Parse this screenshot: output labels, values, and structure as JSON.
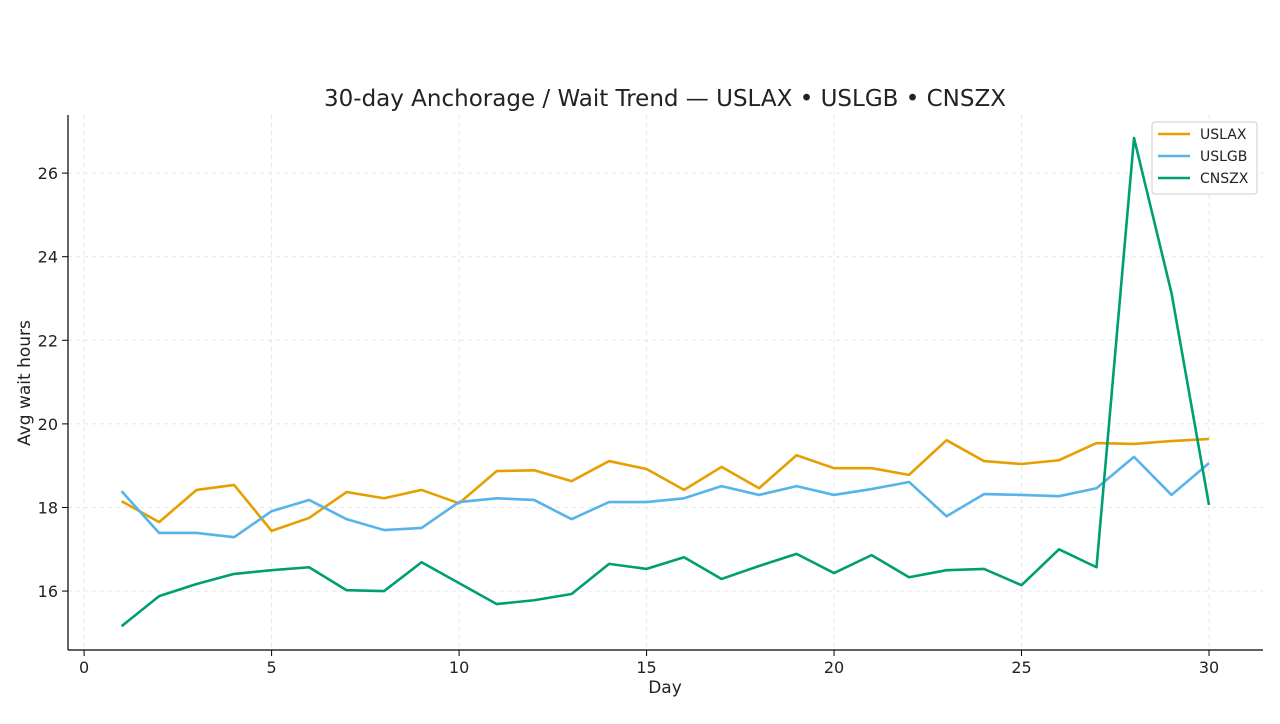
{
  "chart_data": {
    "type": "line",
    "title": "30-day Anchorage / Wait Trend — USLAX • USLGB • CNSZX",
    "xlabel": "Day",
    "ylabel": "Avg wait hours",
    "xlim": [
      -0.43,
      31.44
    ],
    "ylim": [
      14.59,
      27.39
    ],
    "xticks": [
      0,
      5,
      10,
      15,
      20,
      25,
      30
    ],
    "yticks": [
      16,
      18,
      20,
      22,
      24,
      26
    ],
    "grid": true,
    "legend_position": "top-right",
    "x": [
      1,
      2,
      3,
      4,
      5,
      6,
      7,
      8,
      9,
      10,
      11,
      12,
      13,
      14,
      15,
      16,
      17,
      18,
      19,
      20,
      21,
      22,
      23,
      24,
      25,
      26,
      27,
      28,
      29,
      30
    ],
    "series": [
      {
        "name": "USLAX",
        "color": "#E69F00",
        "values": [
          18.15,
          17.65,
          18.42,
          18.54,
          17.44,
          17.75,
          18.37,
          18.22,
          18.42,
          18.1,
          18.87,
          18.89,
          18.63,
          19.11,
          18.92,
          18.42,
          18.97,
          18.46,
          19.25,
          18.94,
          18.94,
          18.78,
          19.61,
          19.11,
          19.04,
          19.13,
          19.54,
          19.52,
          19.59,
          19.64
        ]
      },
      {
        "name": "USLGB",
        "color": "#56B4E9",
        "values": [
          18.39,
          17.39,
          17.39,
          17.29,
          17.91,
          18.18,
          17.72,
          17.46,
          17.51,
          18.13,
          18.22,
          18.18,
          17.72,
          18.13,
          18.13,
          18.22,
          18.51,
          18.3,
          18.51,
          18.3,
          18.44,
          18.61,
          17.79,
          18.32,
          18.3,
          18.27,
          18.46,
          19.21,
          18.3,
          19.06
        ]
      },
      {
        "name": "CNSZX",
        "color": "#009E73",
        "values": [
          15.16,
          15.88,
          16.17,
          16.41,
          16.5,
          16.57,
          16.02,
          16.0,
          16.69,
          16.19,
          15.69,
          15.78,
          15.93,
          16.65,
          16.53,
          16.81,
          16.29,
          16.6,
          16.89,
          16.43,
          16.86,
          16.33,
          16.5,
          16.53,
          16.14,
          17.0,
          16.57,
          26.84,
          23.13,
          18.06
        ]
      }
    ]
  }
}
